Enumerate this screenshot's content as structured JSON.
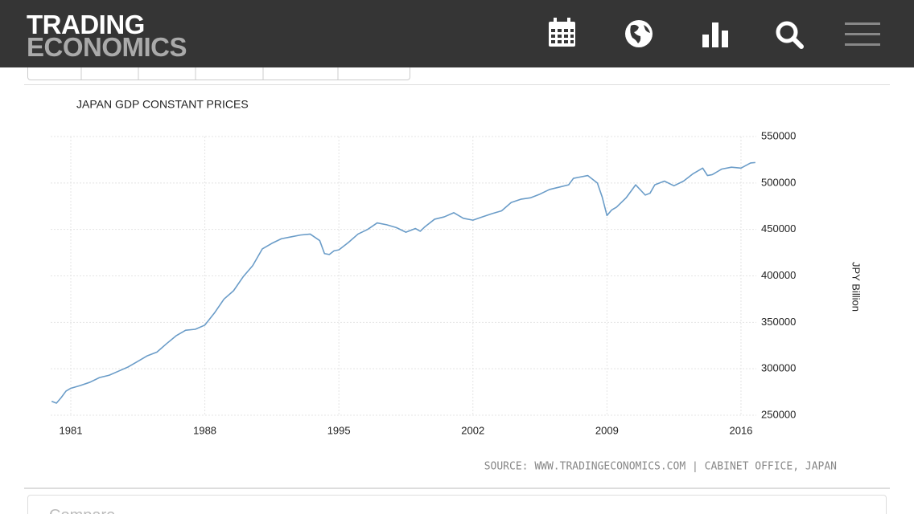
{
  "header": {
    "logo_top": "TRADING",
    "logo_bottom": "ECONOMICS"
  },
  "chart_data": {
    "type": "line",
    "title": "JAPAN GDP CONSTANT PRICES",
    "y_label": "JPY Billion",
    "source": "SOURCE: WWW.TRADINGECONOMICS.COM | CABINET OFFICE, JAPAN",
    "x": [
      1980.0,
      1980.25,
      1980.5,
      1980.75,
      1981.0,
      1981.5,
      1982.0,
      1982.5,
      1983.0,
      1983.5,
      1984.0,
      1984.5,
      1985.0,
      1985.5,
      1986.0,
      1986.5,
      1987.0,
      1987.5,
      1988.0,
      1988.5,
      1989.0,
      1989.5,
      1990.0,
      1990.5,
      1991.0,
      1991.5,
      1992.0,
      1992.5,
      1993.0,
      1993.5,
      1994.0,
      1994.25,
      1994.5,
      1994.75,
      1995.0,
      1995.5,
      1996.0,
      1996.5,
      1997.0,
      1997.5,
      1998.0,
      1998.5,
      1999.0,
      1999.25,
      1999.5,
      2000.0,
      2000.5,
      2001.0,
      2001.5,
      2002.0,
      2002.5,
      2003.0,
      2003.5,
      2004.0,
      2004.5,
      2005.0,
      2005.5,
      2006.0,
      2006.5,
      2007.0,
      2007.25,
      2007.5,
      2008.0,
      2008.5,
      2008.75,
      2009.0,
      2009.25,
      2009.5,
      2010.0,
      2010.5,
      2011.0,
      2011.25,
      2011.5,
      2012.0,
      2012.5,
      2013.0,
      2013.5,
      2014.0,
      2014.25,
      2014.5,
      2015.0,
      2015.5,
      2016.0,
      2016.5,
      2016.75
    ],
    "series": [
      {
        "name": "GDP Constant Prices",
        "color": "#6a9cc8",
        "values": [
          265000,
          263000,
          269000,
          276000,
          279000,
          282000,
          285500,
          290500,
          293000,
          297500,
          302000,
          308000,
          314000,
          318000,
          327000,
          335500,
          341500,
          342500,
          347000,
          360000,
          375000,
          384000,
          399000,
          411000,
          429000,
          435000,
          440000,
          442000,
          444000,
          445000,
          438000,
          424000,
          423000,
          427000,
          428000,
          436000,
          445000,
          450000,
          457000,
          455000,
          452000,
          447000,
          451000,
          448000,
          453000,
          461000,
          463500,
          468000,
          462000,
          460000,
          463500,
          467000,
          470000,
          479000,
          482500,
          484000,
          488000,
          493000,
          495500,
          498000,
          505000,
          506000,
          508000,
          500000,
          485000,
          465000,
          471000,
          474000,
          484000,
          498000,
          487000,
          489000,
          498000,
          502000,
          497000,
          502000,
          510000,
          516000,
          508000,
          509000,
          515000,
          517000,
          516000,
          521500,
          522000
        ]
      }
    ],
    "xlim": [
      1979.95,
      2016.8
    ],
    "xticks": [
      1981,
      1988,
      1995,
      2002,
      2009,
      2016
    ],
    "ylim": [
      250000,
      550000
    ],
    "yticks": [
      250000,
      300000,
      350000,
      400000,
      450000,
      500000,
      550000
    ],
    "grid": true
  },
  "compare": {
    "title": "Compare"
  }
}
